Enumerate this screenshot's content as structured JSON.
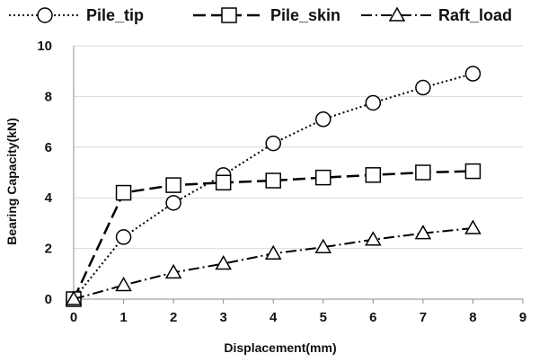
{
  "chart_data": {
    "type": "line",
    "xlabel": "Displacement(mm)",
    "ylabel": "Bearing Capacity(kN)",
    "xlim": [
      0,
      9
    ],
    "ylim": [
      0,
      10
    ],
    "x_ticks": [
      0,
      1,
      2,
      3,
      4,
      5,
      6,
      7,
      8,
      9
    ],
    "y_ticks": [
      0,
      2,
      4,
      6,
      8,
      10
    ],
    "grid": "horizontal",
    "legend_position": "top",
    "x": [
      0,
      1,
      2,
      3,
      4,
      5,
      6,
      7,
      8
    ],
    "series": [
      {
        "name": "Pile_tip",
        "marker": "circle",
        "line_style": "dotted",
        "values": [
          0,
          2.45,
          3.8,
          4.9,
          6.15,
          7.1,
          7.75,
          8.35,
          8.9
        ]
      },
      {
        "name": "Pile_skin",
        "marker": "square",
        "line_style": "dashed",
        "values": [
          0,
          4.2,
          4.5,
          4.6,
          4.68,
          4.8,
          4.9,
          5.0,
          5.05
        ]
      },
      {
        "name": "Raft_load",
        "marker": "triangle",
        "line_style": "dash-dot",
        "values": [
          0,
          0.55,
          1.05,
          1.4,
          1.8,
          2.05,
          2.35,
          2.6,
          2.8
        ]
      }
    ]
  }
}
